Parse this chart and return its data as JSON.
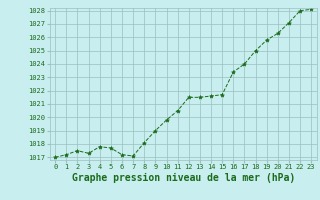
{
  "x": [
    0,
    1,
    2,
    3,
    4,
    5,
    6,
    7,
    8,
    9,
    10,
    11,
    12,
    13,
    14,
    15,
    16,
    17,
    18,
    19,
    20,
    21,
    22,
    23
  ],
  "y": [
    1017.0,
    1017.2,
    1017.5,
    1017.3,
    1017.8,
    1017.7,
    1017.2,
    1017.1,
    1018.1,
    1019.0,
    1019.8,
    1020.5,
    1021.5,
    1021.5,
    1021.6,
    1021.7,
    1023.4,
    1024.0,
    1025.0,
    1025.8,
    1026.3,
    1027.1,
    1028.0,
    1028.1
  ],
  "ylim_min": 1017,
  "ylim_max": 1028,
  "yticks": [
    1017,
    1018,
    1019,
    1020,
    1021,
    1022,
    1023,
    1024,
    1025,
    1026,
    1027,
    1028
  ],
  "xticks": [
    0,
    1,
    2,
    3,
    4,
    5,
    6,
    7,
    8,
    9,
    10,
    11,
    12,
    13,
    14,
    15,
    16,
    17,
    18,
    19,
    20,
    21,
    22,
    23
  ],
  "xlabel": "Graphe pression niveau de la mer (hPa)",
  "line_color": "#1a6b1a",
  "marker": "*",
  "marker_color": "#1a6b1a",
  "bg_color": "#c8eef0",
  "grid_color": "#9bbfbf",
  "text_color": "#1a6b1a",
  "tick_fontsize": 5.0,
  "xlabel_fontsize": 7.0
}
